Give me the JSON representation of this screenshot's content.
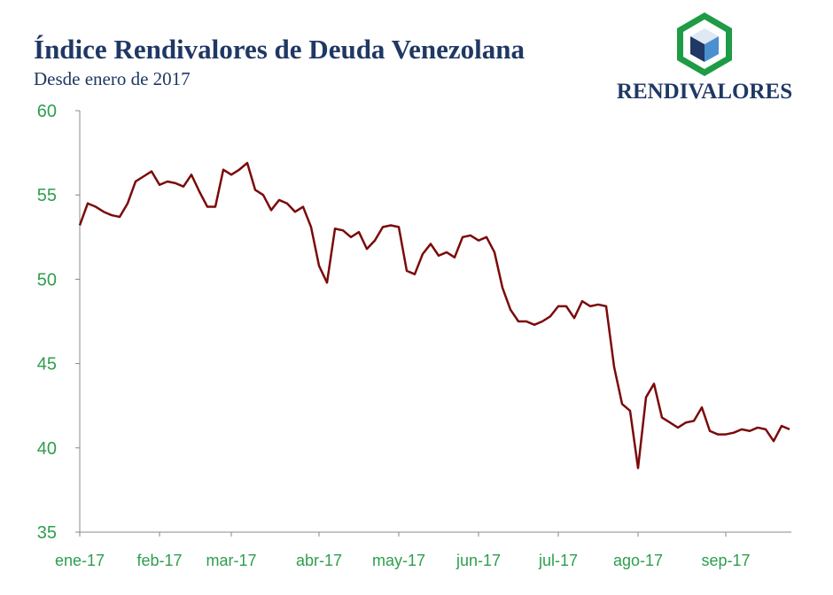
{
  "chart_data": {
    "type": "line",
    "title": "Índice Rendivalores de Deuda Venezolana",
    "subtitle": "Desde enero de 2017",
    "categories": [
      "ene-17",
      null,
      null,
      null,
      null,
      null,
      null,
      null,
      null,
      null,
      "feb-17",
      null,
      null,
      null,
      null,
      null,
      null,
      null,
      null,
      "mar-17",
      null,
      null,
      null,
      null,
      null,
      null,
      null,
      null,
      null,
      null,
      "abr-17",
      null,
      null,
      null,
      null,
      null,
      null,
      null,
      null,
      null,
      "may-17",
      null,
      null,
      null,
      null,
      null,
      null,
      null,
      null,
      null,
      "jun-17",
      null,
      null,
      null,
      null,
      null,
      null,
      null,
      null,
      null,
      "jul-17",
      null,
      null,
      null,
      null,
      null,
      null,
      null,
      null,
      null,
      "ago-17",
      null,
      null,
      null,
      null,
      null,
      null,
      null,
      null,
      null,
      null,
      "sep-17",
      null,
      null,
      null,
      null,
      null,
      null,
      null,
      null
    ],
    "values": [
      53.2,
      54.5,
      54.3,
      54.0,
      53.8,
      53.7,
      54.5,
      55.8,
      56.1,
      56.4,
      55.6,
      55.8,
      55.7,
      55.5,
      56.2,
      55.2,
      54.3,
      54.3,
      56.5,
      56.2,
      56.5,
      56.9,
      55.3,
      55.0,
      54.1,
      54.7,
      54.5,
      54.0,
      54.3,
      53.1,
      50.8,
      49.8,
      53.0,
      52.9,
      52.5,
      52.8,
      51.8,
      52.3,
      53.1,
      53.2,
      53.1,
      50.5,
      50.3,
      51.5,
      52.1,
      51.4,
      51.6,
      51.3,
      52.5,
      52.6,
      52.3,
      52.5,
      51.6,
      49.5,
      48.2,
      47.5,
      47.5,
      47.3,
      47.5,
      47.8,
      48.4,
      48.4,
      47.7,
      48.7,
      48.4,
      48.5,
      48.4,
      44.8,
      42.6,
      42.2,
      38.8,
      43.0,
      43.8,
      41.8,
      41.5,
      41.2,
      41.5,
      41.6,
      42.4,
      41.0,
      40.8,
      40.8,
      40.9,
      41.1,
      41.0,
      41.2,
      41.1,
      40.4,
      41.3,
      41.1
    ],
    "color": "#7b0a0a",
    "ylim": [
      35,
      60
    ],
    "yticks": [
      35,
      40,
      45,
      50,
      55,
      60
    ],
    "grid": false
  },
  "logo": {
    "text": "RENDIVALORES"
  }
}
